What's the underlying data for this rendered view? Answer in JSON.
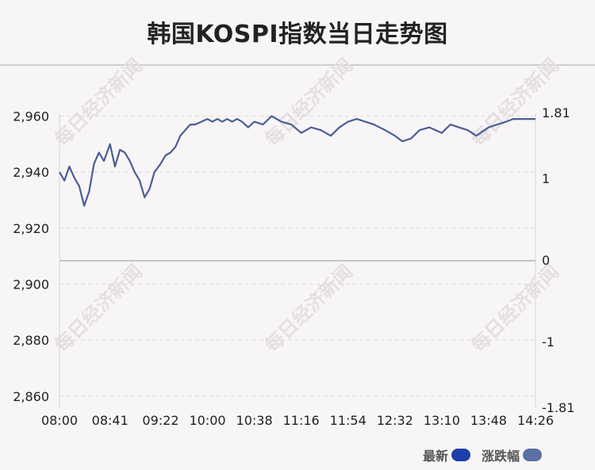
{
  "title": "韩国KOSPI指数当日走势图",
  "watermark": "每日经济新闻",
  "legend": [
    {
      "label": "最新",
      "color": "#1e3ea8"
    },
    {
      "label": "涨跌幅",
      "color": "#5b70a3"
    }
  ],
  "colors": {
    "line": "#4a5f94",
    "zero_line": "#c4c4c4",
    "grid": "#dcdcdc",
    "axis_text": "#222222"
  },
  "chart_data": {
    "type": "line",
    "x_ticks": [
      "08:00",
      "08:41",
      "09:22",
      "10:00",
      "10:38",
      "11:16",
      "11:54",
      "12:32",
      "13:10",
      "13:48",
      "14:26"
    ],
    "y_left_ticks": [
      "2,960",
      "2,940",
      "2,920",
      "2,900",
      "2,880",
      "2,860"
    ],
    "y_left_tick_values": [
      2960,
      2940,
      2920,
      2900,
      2880,
      2860
    ],
    "y_left_range": [
      2855.7,
      2961.0
    ],
    "y_right_ticks": [
      "1.81",
      "1",
      "0",
      "-1",
      "-1.81"
    ],
    "y_right_tick_values": [
      1.81,
      1,
      0,
      -1,
      -1.81
    ],
    "y_right_range": [
      -1.81,
      1.81
    ],
    "legend_position": "bottom-right",
    "grid": true,
    "series": [
      {
        "name": "最新",
        "x": [
          "08:00",
          "08:04",
          "08:08",
          "08:12",
          "08:16",
          "08:20",
          "08:24",
          "08:28",
          "08:32",
          "08:36",
          "08:41",
          "08:45",
          "08:49",
          "08:53",
          "08:57",
          "09:01",
          "09:05",
          "09:09",
          "09:13",
          "09:17",
          "09:22",
          "09:26",
          "09:30",
          "09:34",
          "09:38",
          "09:42",
          "09:46",
          "09:50",
          "09:55",
          "10:00",
          "10:04",
          "10:08",
          "10:12",
          "10:16",
          "10:20",
          "10:24",
          "10:28",
          "10:33",
          "10:38",
          "10:45",
          "10:52",
          "11:00",
          "11:08",
          "11:16",
          "11:24",
          "11:32",
          "11:40",
          "11:47",
          "11:54",
          "12:01",
          "12:08",
          "12:15",
          "12:24",
          "12:32",
          "12:38",
          "12:45",
          "12:52",
          "13:00",
          "13:05",
          "13:10",
          "13:17",
          "13:24",
          "13:31",
          "13:38",
          "13:48",
          "13:55",
          "14:02",
          "14:08",
          "14:14",
          "14:20",
          "14:26"
        ],
        "values": [
          2940,
          2937,
          2942,
          2938,
          2935,
          2928,
          2933,
          2943,
          2947,
          2944,
          2950,
          2942,
          2948,
          2947,
          2944,
          2940,
          2937,
          2931,
          2934,
          2940,
          2943,
          2946,
          2947,
          2949,
          2953,
          2955,
          2957,
          2957,
          2958,
          2959,
          2958,
          2959,
          2958,
          2959,
          2958,
          2959,
          2958,
          2956,
          2958,
          2957,
          2960,
          2958,
          2957,
          2954,
          2956,
          2955,
          2953,
          2956,
          2958,
          2959,
          2958,
          2957,
          2955,
          2953,
          2951,
          2952,
          2955,
          2956,
          2955,
          2954,
          2957,
          2956,
          2955,
          2953,
          2956,
          2957,
          2958,
          2959,
          2959,
          2959,
          2959
        ]
      }
    ]
  }
}
